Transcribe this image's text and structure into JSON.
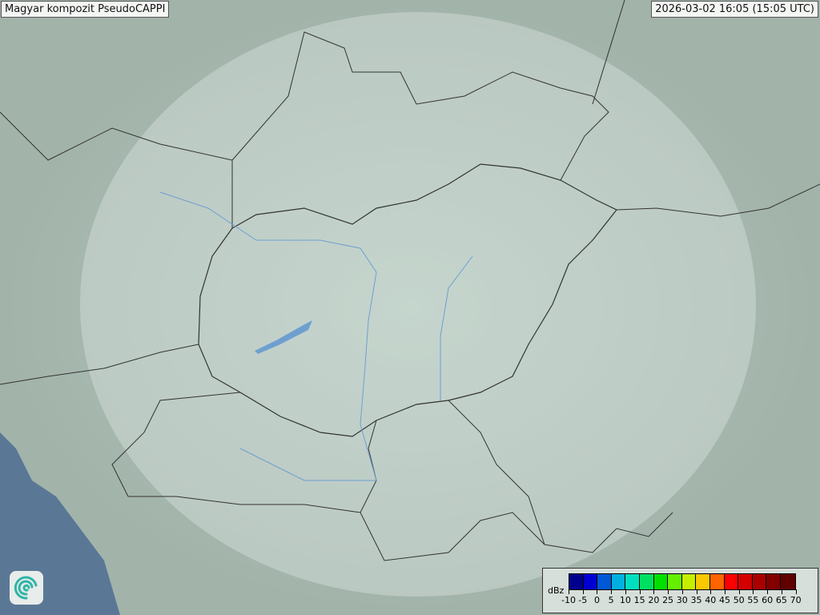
{
  "header": {
    "title": "Magyar kompozit  PseudoCAPPI",
    "timestamp": "2026-03-02 16:05 (15:05 UTC)"
  },
  "logo": {
    "icon": "swirl-logo-icon"
  },
  "legend": {
    "unit": "dBz",
    "ticks": [
      "-10",
      "-5",
      "0",
      "5",
      "10",
      "15",
      "20",
      "25",
      "30",
      "35",
      "40",
      "45",
      "50",
      "55",
      "60",
      "65",
      "70"
    ],
    "colors": [
      "#00008c",
      "#0000d2",
      "#0058d6",
      "#00b0e0",
      "#00e0c0",
      "#00e060",
      "#00e000",
      "#64f000",
      "#c4f000",
      "#f8c800",
      "#ff6400",
      "#ff0000",
      "#d40000",
      "#aa0000",
      "#820000",
      "#600000"
    ]
  },
  "map": {
    "land_color": "#a6b6ad",
    "sea_color": "#5a7896",
    "radar_coverage_color": "#dfe8e4",
    "border_color": "#333333",
    "river_color": "#6f9fd0"
  }
}
